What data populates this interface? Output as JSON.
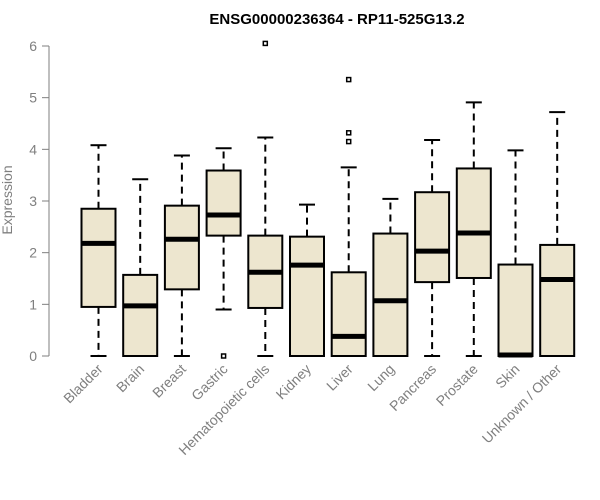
{
  "chart_data": {
    "type": "boxplot",
    "title": "ENSG00000236364 - RP11-525G13.2",
    "xlabel": "",
    "ylabel": "Expression",
    "ylim": [
      0,
      6
    ],
    "yticks": [
      0,
      1,
      2,
      3,
      4,
      5,
      6
    ],
    "box_fill": "#ede6cf",
    "box_stroke": "#000000",
    "categories": [
      "Bladder",
      "Brain",
      "Breast",
      "Gastric",
      "Hematopoietic cells",
      "Kidney",
      "Liver",
      "Lung",
      "Pancreas",
      "Prostate",
      "Skin",
      "Unknown / Other"
    ],
    "boxes": [
      {
        "min": 0.0,
        "q1": 0.95,
        "median": 2.18,
        "q3": 2.85,
        "max": 4.08,
        "outliers": []
      },
      {
        "min": 0.0,
        "q1": 0.0,
        "median": 0.97,
        "q3": 1.57,
        "max": 3.42,
        "outliers": []
      },
      {
        "min": 0.0,
        "q1": 1.29,
        "median": 2.26,
        "q3": 2.91,
        "max": 3.88,
        "outliers": []
      },
      {
        "min": 0.9,
        "q1": 2.33,
        "median": 2.73,
        "q3": 3.59,
        "max": 4.02,
        "outliers": [
          0.0
        ]
      },
      {
        "min": 0.0,
        "q1": 0.93,
        "median": 1.62,
        "q3": 2.33,
        "max": 4.23,
        "outliers": [
          6.05
        ]
      },
      {
        "min": 0.0,
        "q1": 0.0,
        "median": 1.76,
        "q3": 2.31,
        "max": 2.93,
        "outliers": []
      },
      {
        "min": 0.0,
        "q1": 0.0,
        "median": 0.38,
        "q3": 1.62,
        "max": 3.65,
        "outliers": [
          4.15,
          4.32,
          5.35
        ]
      },
      {
        "min": 0.0,
        "q1": 0.0,
        "median": 1.07,
        "q3": 2.37,
        "max": 3.04,
        "outliers": []
      },
      {
        "min": 0.0,
        "q1": 1.43,
        "median": 2.03,
        "q3": 3.17,
        "max": 4.18,
        "outliers": []
      },
      {
        "min": 0.0,
        "q1": 1.51,
        "median": 2.38,
        "q3": 3.63,
        "max": 4.91,
        "outliers": []
      },
      {
        "min": 0.0,
        "q1": 0.0,
        "median": 0.02,
        "q3": 1.77,
        "max": 3.98,
        "outliers": []
      },
      {
        "min": 0.0,
        "q1": 0.0,
        "median": 1.48,
        "q3": 2.15,
        "max": 4.72,
        "outliers": []
      }
    ]
  }
}
